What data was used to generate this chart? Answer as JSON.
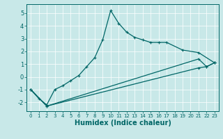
{
  "xlabel": "Humidex (Indice chaleur)",
  "bg_color": "#c8e8e8",
  "line_color": "#006666",
  "grid_color": "#ffffff",
  "xlim": [
    -0.5,
    23.5
  ],
  "ylim": [
    -2.7,
    5.7
  ],
  "yticks": [
    -2,
    -1,
    0,
    1,
    2,
    3,
    4,
    5
  ],
  "xticks": [
    0,
    1,
    2,
    3,
    4,
    5,
    6,
    7,
    8,
    9,
    10,
    11,
    12,
    13,
    14,
    15,
    16,
    17,
    18,
    19,
    20,
    21,
    22,
    23
  ],
  "line1_x": [
    0,
    1,
    2,
    3,
    4,
    5,
    6,
    7,
    8,
    9,
    10,
    11,
    12,
    13,
    14,
    15,
    16,
    17,
    19,
    21,
    23
  ],
  "line1_y": [
    -1.0,
    -1.7,
    -2.2,
    -1.0,
    -0.7,
    -0.3,
    0.1,
    0.8,
    1.5,
    2.9,
    5.2,
    4.2,
    3.5,
    3.1,
    2.9,
    2.7,
    2.7,
    2.7,
    2.1,
    1.9,
    1.1
  ],
  "line2_x": [
    0,
    2,
    21,
    22,
    23
  ],
  "line2_y": [
    -1.0,
    -2.3,
    1.4,
    0.8,
    1.1
  ],
  "line3_x": [
    0,
    2,
    21,
    22,
    23
  ],
  "line3_y": [
    -1.0,
    -2.3,
    0.7,
    0.8,
    1.1
  ],
  "xlabel_fontsize": 7,
  "tick_fontsize": 5,
  "ytick_fontsize": 6
}
